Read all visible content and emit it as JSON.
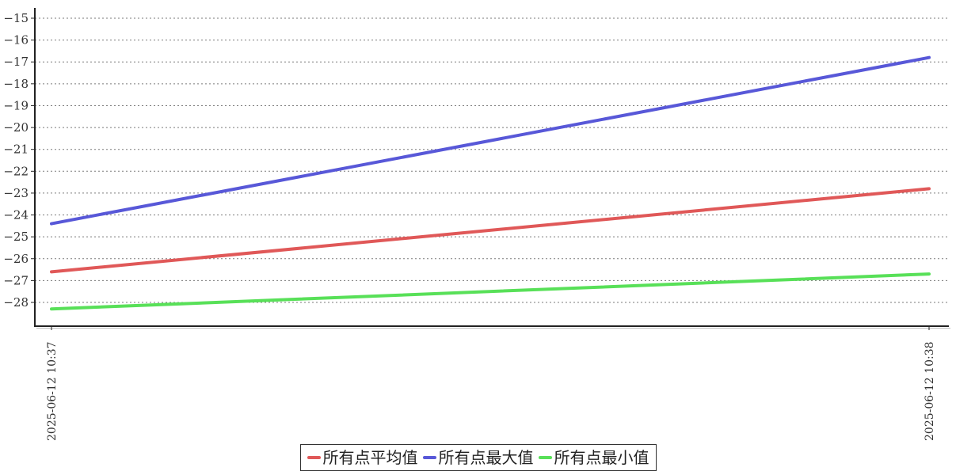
{
  "chart_data": {
    "type": "line",
    "x": [
      "2025-06-12 10:37",
      "2025-06-12 10:38"
    ],
    "series": [
      {
        "name": "所有点平均值",
        "color": "#e05858",
        "values": [
          -26.6,
          -22.8
        ]
      },
      {
        "name": "所有点最大值",
        "color": "#5858d8",
        "values": [
          -24.4,
          -16.8
        ]
      },
      {
        "name": "所有点最小值",
        "color": "#58e058",
        "values": [
          -28.3,
          -26.7
        ]
      }
    ],
    "yticks": [
      -15,
      -16,
      -17,
      -18,
      -19,
      -20,
      -21,
      -22,
      -23,
      -24,
      -25,
      -26,
      -27,
      -28
    ],
    "ylim": [
      -29.1,
      -14.5
    ],
    "grid": true,
    "legend_position": "bottom",
    "x_tick_rotation": 90
  }
}
